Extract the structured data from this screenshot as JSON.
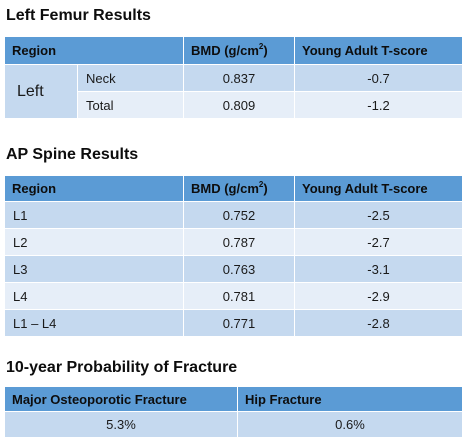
{
  "femur": {
    "title": "Left Femur Results",
    "headers": {
      "region": "Region",
      "bmd": "BMD (g/cm",
      "bmd_sup": "2",
      "bmd_end": ")",
      "tscore": "Young Adult T-score"
    },
    "side": "Left",
    "rows": [
      {
        "site": "Neck",
        "bmd": "0.837",
        "tscore": "-0.7"
      },
      {
        "site": "Total",
        "bmd": "0.809",
        "tscore": "-1.2"
      }
    ]
  },
  "spine": {
    "title": "AP Spine Results",
    "headers": {
      "region": "Region",
      "bmd": "BMD (g/cm",
      "bmd_sup": "2",
      "bmd_end": ")",
      "tscore": "Young Adult T-score"
    },
    "rows": [
      {
        "region": "L1",
        "bmd": "0.752",
        "tscore": "-2.5"
      },
      {
        "region": "L2",
        "bmd": "0.787",
        "tscore": "-2.7"
      },
      {
        "region": "L3",
        "bmd": "0.763",
        "tscore": "-3.1"
      },
      {
        "region": "L4",
        "bmd": "0.781",
        "tscore": "-2.9"
      },
      {
        "region": "L1 – L4",
        "bmd": "0.771",
        "tscore": "-2.8"
      }
    ]
  },
  "fracture": {
    "title": "10-year Probability of Fracture",
    "headers": {
      "major": "Major Osteoporotic Fracture",
      "hip": "Hip Fracture"
    },
    "values": {
      "major": "5.3%",
      "hip": "0.6%"
    }
  }
}
